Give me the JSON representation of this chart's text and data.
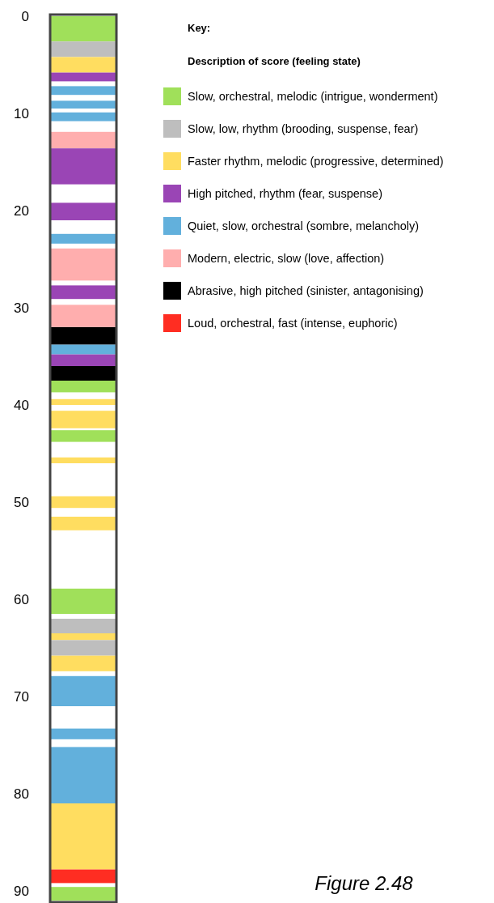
{
  "chart_data": {
    "type": "bar",
    "categories": [
      null
    ],
    "ylim": [
      91,
      0
    ],
    "yticks": [
      0,
      10,
      20,
      30,
      40,
      50,
      60,
      70,
      80,
      90
    ],
    "tick_labels": "y",
    "grid": false,
    "legend": "top left",
    "legend_title": "Key:",
    "annotations": [
      "Description of score (feeling state)",
      "Figure 2.48"
    ],
    "series": [
      {
        "name": "Slow, orchestral, melodic (intrigue, wonderment)",
        "color": "#a0e05a",
        "base": [
          0
        ],
        "values": [
          2.6
        ]
      },
      {
        "name": "Slow, low, rhythm (brooding, suspense, fear)",
        "color": "#bebebe",
        "base": [
          2.6
        ],
        "values": [
          1.6
        ]
      },
      {
        "name": "Faster rhythm, melodic (progressive, determined)",
        "color": "#ffdd60",
        "base": [
          4.2
        ],
        "values": [
          1.6
        ]
      },
      {
        "name": "High pitched, rhythm (fear, suspense)",
        "color": "#9a45b5",
        "base": [
          5.8
        ],
        "values": [
          0.9
        ]
      },
      {
        "name": "Quiet, slow, orchestral (sombre, melancholy)",
        "color": "#62b0dc",
        "base": [
          7.2
        ],
        "values": [
          0.9
        ]
      },
      {
        "color": "#62b0dc",
        "base": [
          8.7
        ],
        "values": [
          0.8
        ]
      },
      {
        "color": "#62b0dc",
        "base": [
          9.9
        ],
        "values": [
          0.9
        ]
      },
      {
        "name": "Modern, electric, slow (love, affection)",
        "color": "#ffaeae",
        "base": [
          11.9
        ],
        "values": [
          1.7
        ]
      },
      {
        "color": "#9a45b5",
        "base": [
          13.6
        ],
        "values": [
          3.7
        ]
      },
      {
        "color": "#9a45b5",
        "base": [
          19.2
        ],
        "values": [
          1.8
        ]
      },
      {
        "color": "#62b0dc",
        "base": [
          22.4
        ],
        "values": [
          1.0
        ]
      },
      {
        "color": "#ffaeae",
        "base": [
          23.9
        ],
        "values": [
          3.3
        ]
      },
      {
        "color": "#9a45b5",
        "base": [
          27.7
        ],
        "values": [
          1.4
        ]
      },
      {
        "color": "#ffaeae",
        "base": [
          29.7
        ],
        "values": [
          2.3
        ]
      },
      {
        "name": "Abrasive, high pitched (sinister, antagonising)",
        "color": "#000000",
        "base": [
          32.0
        ],
        "values": [
          1.8
        ]
      },
      {
        "color": "#62b0dc",
        "base": [
          33.8
        ],
        "values": [
          1.0
        ]
      },
      {
        "color": "#9a45b5",
        "base": [
          34.8
        ],
        "values": [
          1.2
        ]
      },
      {
        "color": "#000000",
        "base": [
          36.0
        ],
        "values": [
          1.5
        ]
      },
      {
        "color": "#a0e05a",
        "base": [
          37.5
        ],
        "values": [
          1.2
        ]
      },
      {
        "color": "#ffdd60",
        "base": [
          39.4
        ],
        "values": [
          0.6
        ]
      },
      {
        "color": "#ffdd60",
        "base": [
          40.6
        ],
        "values": [
          1.8
        ]
      },
      {
        "color": "#a0e05a",
        "base": [
          42.6
        ],
        "values": [
          1.2
        ]
      },
      {
        "color": "#ffdd60",
        "base": [
          45.4
        ],
        "values": [
          0.6
        ]
      },
      {
        "color": "#ffdd60",
        "base": [
          49.4
        ],
        "values": [
          1.2
        ]
      },
      {
        "color": "#ffdd60",
        "base": [
          51.5
        ],
        "values": [
          1.4
        ]
      },
      {
        "color": "#a0e05a",
        "base": [
          58.9
        ],
        "values": [
          2.6
        ]
      },
      {
        "color": "#bebebe",
        "base": [
          62.0
        ],
        "values": [
          1.5
        ]
      },
      {
        "color": "#ffdd60",
        "base": [
          63.5
        ],
        "values": [
          0.7
        ]
      },
      {
        "color": "#bebebe",
        "base": [
          64.2
        ],
        "values": [
          1.6
        ]
      },
      {
        "color": "#ffdd60",
        "base": [
          65.8
        ],
        "values": [
          1.6
        ]
      },
      {
        "color": "#62b0dc",
        "base": [
          67.9
        ],
        "values": [
          3.1
        ]
      },
      {
        "color": "#62b0dc",
        "base": [
          73.3
        ],
        "values": [
          1.1
        ]
      },
      {
        "color": "#62b0dc",
        "base": [
          75.2
        ],
        "values": [
          5.8
        ]
      },
      {
        "color": "#ffdd60",
        "base": [
          81.0
        ],
        "values": [
          6.8
        ]
      },
      {
        "name": "Loud, orchestral, fast (intense, euphoric)",
        "color": "#ff2d22",
        "base": [
          87.8
        ],
        "values": [
          1.4
        ]
      },
      {
        "color": "#a0e05a",
        "base": [
          89.6
        ],
        "values": [
          1.4
        ]
      }
    ]
  }
}
